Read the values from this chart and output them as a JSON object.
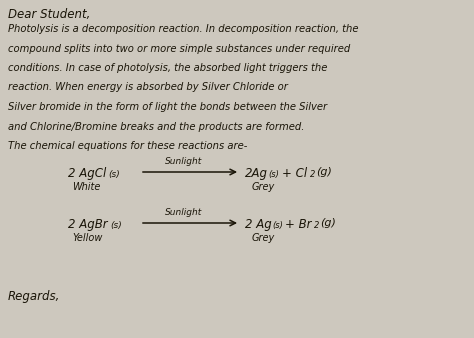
{
  "bg_color": "#cdc8be",
  "text_color": "#1a1508",
  "title": "Dear Student,",
  "lines": [
    "Photolysis is a decomposition reaction. In decomposition reaction, the",
    "compound splits into two or more simple substances under required",
    "conditions. In case of photolysis, the absorbed light triggers the",
    "reaction. When energy is absorbed by Silver Chloride or",
    "Silver bromide in the form of light the bonds between the Silver",
    "and Chlorine/Bromine breaks and the products are formed.",
    "The chemical equations for these reactions are-"
  ],
  "eq1_left": "2 AgCl",
  "eq1_left_sub": "(s)",
  "eq1_color_label": "White",
  "eq1_sunlight": "Sunlight",
  "eq1_right1": "2Ag",
  "eq1_right1_sub": "(s)",
  "eq1_right2": "+ Cl",
  "eq1_right2_sub": "2",
  "eq1_right3": "(g)",
  "eq1_color_label2": "Grey",
  "eq2_left": "2 AgBr",
  "eq2_left_sub": "(s)",
  "eq2_color_label": "Yellow",
  "eq2_sunlight": "Sunlight",
  "eq2_right1": "2 Ag",
  "eq2_right1_sub": "(s)",
  "eq2_right2": "+ Br",
  "eq2_right2_sub": "2",
  "eq2_right3": "(g)",
  "eq2_color_label2": "Grey",
  "closing": "Regards,"
}
